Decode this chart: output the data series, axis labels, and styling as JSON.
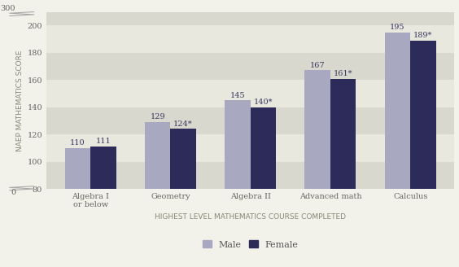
{
  "categories": [
    "Algebra I\nor below",
    "Geometry",
    "Algebra II",
    "Advanced math",
    "Calculus"
  ],
  "male_values": [
    110,
    129,
    145,
    167,
    195
  ],
  "female_values": [
    111,
    124,
    140,
    161,
    189
  ],
  "male_labels": [
    "110",
    "129",
    "145",
    "167",
    "195"
  ],
  "female_labels": [
    "111",
    "124*",
    "140*",
    "161*",
    "189*"
  ],
  "male_color": "#a8a8c0",
  "female_color": "#2d2b5a",
  "background_color": "#f2f2ea",
  "stripe_light": "#e8e8df",
  "stripe_dark": "#d8d8ce",
  "ylabel": "NAEP MATHEMATICS SCORE",
  "xlabel": "HIGHEST LEVEL MATHEMATICS COURSE COMPLETED",
  "ymin": 80,
  "ymax": 210,
  "bar_width": 0.32,
  "label_fontsize": 7.0,
  "tick_fontsize": 7.0,
  "axis_label_fontsize": 6.5,
  "legend_fontsize": 8.0
}
